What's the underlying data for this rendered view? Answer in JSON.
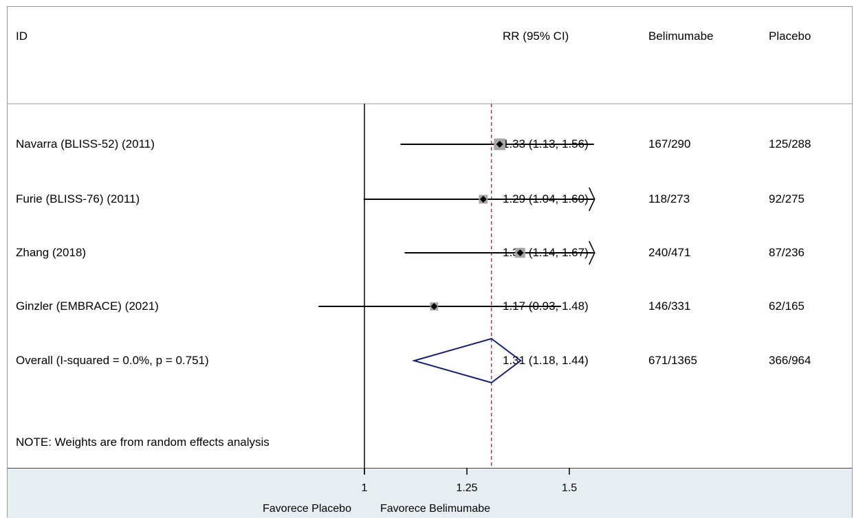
{
  "chart_data": {
    "type": "forest",
    "headers": {
      "id": "ID",
      "effect": "RR (95% CI)",
      "treatment": "Belimumabe",
      "control": "Placebo"
    },
    "studies": [
      {
        "label": "Navarra (BLISS-52) (2011)",
        "rr": 1.33,
        "lo": 1.13,
        "hi": 1.56,
        "ci_text": "1.33 (1.13, 1.56)",
        "treatment": "167/290",
        "control": "125/288",
        "weight": 0.37
      },
      {
        "label": "Furie (BLISS-76) (2011)",
        "rr": 1.29,
        "lo": 1.04,
        "hi": 1.6,
        "ci_text": "1.29 (1.04, 1.60)",
        "treatment": "118/273",
        "control": "92/275",
        "weight": 0.2
      },
      {
        "label": "Zhang (2018)",
        "rr": 1.38,
        "lo": 1.14,
        "hi": 1.67,
        "ci_text": "1.38 (1.14, 1.67)",
        "treatment": "240/471",
        "control": "87/236",
        "weight": 0.27
      },
      {
        "label": "Ginzler (EMBRACE) (2021)",
        "rr": 1.17,
        "lo": 0.93,
        "hi": 1.48,
        "ci_text": "1.17 (0.93, 1.48)",
        "treatment": "146/331",
        "control": "62/165",
        "weight": 0.16
      }
    ],
    "overall": {
      "label": "Overall  (I-squared = 0.0%, p = 0.751)",
      "rr": 1.31,
      "lo": 1.18,
      "hi": 1.44,
      "ci_text": "1.31 (1.18, 1.44)",
      "treatment": "671/1365",
      "control": "366/964"
    },
    "note": "NOTE: Weights are from random effects analysis",
    "xticks": [
      1,
      1.25,
      1.5
    ],
    "xtick_labels": [
      "1",
      "1.25",
      "1.5"
    ],
    "x_range": [
      0.93,
      1.6
    ],
    "null_value": 1,
    "xlabel_left": "Favorece Placebo",
    "xlabel_right": "Favorece Belimumabe",
    "colors": {
      "square": "#a6a6a6",
      "line": "#000000",
      "diamond": "#1a1f6e",
      "ref_line": "#8b1a1a"
    }
  }
}
